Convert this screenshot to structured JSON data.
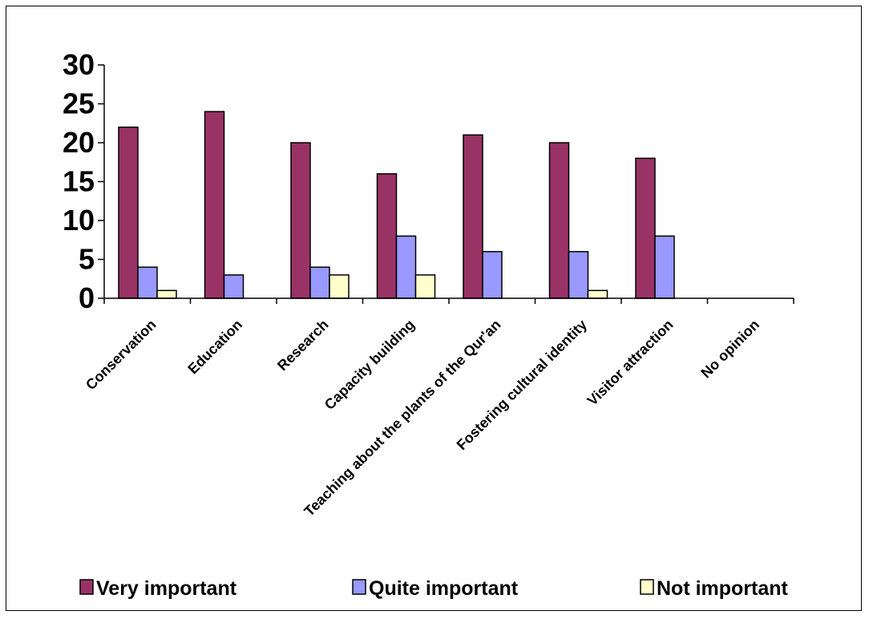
{
  "colors": {
    "very_important": "#993366",
    "quite_important": "#9999ff",
    "not_important": "#ffffcc",
    "axis": "#000000"
  },
  "chart_data": {
    "type": "bar",
    "title": "",
    "xlabel": "",
    "ylabel": "",
    "ylim": [
      0,
      30
    ],
    "yticks": [
      0,
      5,
      10,
      15,
      20,
      25,
      30
    ],
    "grid": false,
    "legend_position": "bottom",
    "categories": [
      "Conservation",
      "Education",
      "Research",
      "Capacity building",
      "Teaching about the plants of the Qur'an",
      "Fostering cultural identity",
      "Visitor attraction",
      "No opinion"
    ],
    "series": [
      {
        "name": "Very important",
        "values": [
          22,
          24,
          20,
          16,
          21,
          20,
          18,
          0
        ]
      },
      {
        "name": "Quite important",
        "values": [
          4,
          3,
          4,
          8,
          6,
          6,
          8,
          0
        ]
      },
      {
        "name": "Not important",
        "values": [
          1,
          0,
          3,
          3,
          0,
          1,
          0,
          0
        ]
      }
    ]
  }
}
